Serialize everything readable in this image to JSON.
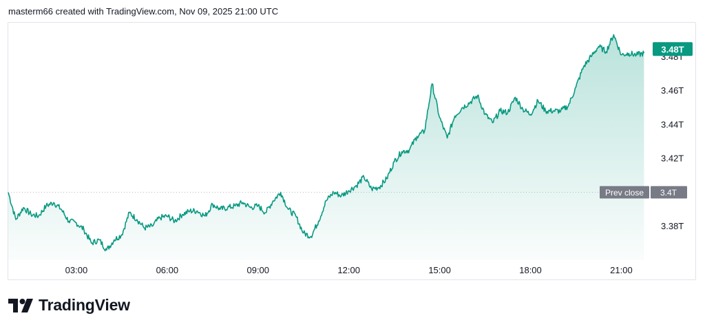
{
  "header": {
    "text": "masterm66 created with TradingView.com, Nov 09, 2025 21:00 UTC"
  },
  "brand": {
    "name": "TradingView",
    "logo_icon": "tradingview-logo-icon"
  },
  "colors": {
    "line": "#089981",
    "fill_top": "#089981",
    "label_bg": "#089981",
    "prev_close_bg": "#787b86",
    "axis_text": "#131722",
    "dotted": "#b2b5be"
  },
  "chart_data": {
    "type": "area",
    "x_ticks": [
      "03:00",
      "06:00",
      "09:00",
      "12:00",
      "15:00",
      "18:00",
      "21:00"
    ],
    "x_tick_hours": [
      3,
      6,
      9,
      12,
      15,
      18,
      21
    ],
    "xlim": [
      0.75,
      21.9
    ],
    "y_ticks": [
      "3.38T",
      "3.42T",
      "3.44T",
      "3.46T",
      "3.48T"
    ],
    "y_tick_values": [
      3.38,
      3.42,
      3.44,
      3.46,
      3.48
    ],
    "ylim": [
      3.36,
      3.5
    ],
    "prev_close": {
      "label": "Prev close",
      "value_label": "3.4T",
      "value": 3.4
    },
    "last": {
      "label": "3.48T",
      "value": 3.48
    },
    "series": [
      {
        "x": [
          0.75,
          1.0,
          1.25,
          1.5,
          1.75,
          2.0,
          2.25,
          2.5,
          2.75,
          3.0,
          3.25,
          3.5,
          3.75,
          4.0,
          4.25,
          4.5,
          4.75,
          5.0,
          5.25,
          5.5,
          5.75,
          6.0,
          6.25,
          6.5,
          6.75,
          7.0,
          7.25,
          7.5,
          7.75,
          8.0,
          8.25,
          8.5,
          8.75,
          9.0,
          9.25,
          9.5,
          9.75,
          10.0,
          10.25,
          10.5,
          10.75,
          11.0,
          11.25,
          11.5,
          11.75,
          12.0,
          12.25,
          12.5,
          12.75,
          13.0,
          13.25,
          13.5,
          13.75,
          14.0,
          14.25,
          14.5,
          14.75,
          15.0,
          15.25,
          15.5,
          15.75,
          16.0,
          16.25,
          16.5,
          16.75,
          17.0,
          17.25,
          17.5,
          17.75,
          18.0,
          18.25,
          18.5,
          18.75,
          19.0,
          19.25,
          19.5,
          19.75,
          20.0,
          20.25,
          20.5,
          20.75,
          21.0,
          21.25,
          21.5,
          21.75
        ],
        "y": [
          3.4,
          3.384,
          3.391,
          3.387,
          3.386,
          3.392,
          3.394,
          3.39,
          3.383,
          3.382,
          3.378,
          3.37,
          3.372,
          3.366,
          3.372,
          3.375,
          3.388,
          3.384,
          3.379,
          3.38,
          3.385,
          3.386,
          3.383,
          3.387,
          3.389,
          3.389,
          3.386,
          3.393,
          3.39,
          3.391,
          3.392,
          3.394,
          3.391,
          3.392,
          3.388,
          3.395,
          3.4,
          3.39,
          3.386,
          3.376,
          3.374,
          3.383,
          3.395,
          3.4,
          3.398,
          3.401,
          3.404,
          3.409,
          3.402,
          3.403,
          3.408,
          3.418,
          3.424,
          3.425,
          3.433,
          3.436,
          3.464,
          3.444,
          3.432,
          3.445,
          3.45,
          3.453,
          3.457,
          3.446,
          3.441,
          3.448,
          3.447,
          3.456,
          3.449,
          3.446,
          3.454,
          3.448,
          3.448,
          3.448,
          3.451,
          3.462,
          3.474,
          3.48,
          3.486,
          3.483,
          3.493,
          3.481,
          3.482,
          3.481,
          3.482
        ]
      }
    ]
  }
}
